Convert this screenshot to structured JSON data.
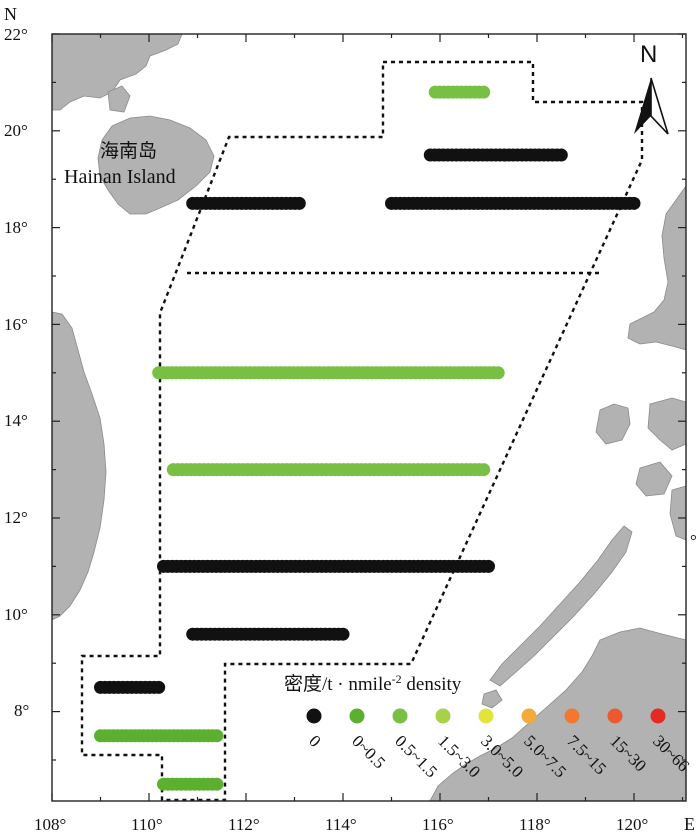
{
  "axes": {
    "north_letter": "N",
    "east_letter": "E",
    "lat_ticks": [
      "22°",
      "20°",
      "18°",
      "16°",
      "14°",
      "12°",
      "10°",
      "8°"
    ],
    "lon_ticks": [
      "108°",
      "110°",
      "112°",
      "114°",
      "116°",
      "118°",
      "120°"
    ],
    "right_edge_mark": "°"
  },
  "places": {
    "hainan_cn": "海南岛",
    "hainan_en": "Hainan Island"
  },
  "north_arrow_label": "N",
  "legend": {
    "title_prefix": "密度/t · nmile",
    "title_superscript": "-2",
    "title_suffix": " density",
    "classes": [
      {
        "label": "0",
        "color": "#111111"
      },
      {
        "label": "0~0.5",
        "color": "#5cb030"
      },
      {
        "label": "0.5~1.5",
        "color": "#78c044"
      },
      {
        "label": "1.5~3.0",
        "color": "#a8d048"
      },
      {
        "label": "3.0~5.0",
        "color": "#e2e43c"
      },
      {
        "label": "5.0~7.5",
        "color": "#f2aa3c"
      },
      {
        "label": "7.5~15",
        "color": "#f07830"
      },
      {
        "label": "15~30",
        "color": "#ea5a2e"
      },
      {
        "label": "30~66",
        "color": "#e42a22"
      }
    ]
  },
  "colors": {
    "land": "#b2b2b2",
    "sea": "#ffffff",
    "frame": "#222222"
  },
  "survey_tracks": [
    {
      "lat": 20.8,
      "lon_start": 115.9,
      "lon_end": 116.9,
      "density_class": "0.5~1.5"
    },
    {
      "lat": 19.5,
      "lon_start": 115.8,
      "lon_end": 118.5,
      "density_class": "0"
    },
    {
      "lat": 18.5,
      "lon_start": 110.9,
      "lon_end": 113.1,
      "density_class": "0"
    },
    {
      "lat": 18.5,
      "lon_start": 115.0,
      "lon_end": 120.0,
      "density_class": "0"
    },
    {
      "lat": 15.0,
      "lon_start": 110.2,
      "lon_end": 117.2,
      "density_class": "0.5~1.5"
    },
    {
      "lat": 13.0,
      "lon_start": 110.5,
      "lon_end": 116.9,
      "density_class": "0.5~1.5"
    },
    {
      "lat": 11.0,
      "lon_start": 110.3,
      "lon_end": 117.0,
      "density_class": "0"
    },
    {
      "lat": 9.6,
      "lon_start": 110.9,
      "lon_end": 114.0,
      "density_class": "0"
    },
    {
      "lat": 8.5,
      "lon_start": 109.0,
      "lon_end": 110.2,
      "density_class": "0"
    },
    {
      "lat": 7.5,
      "lon_start": 109.0,
      "lon_end": 111.4,
      "density_class": "0~0.5"
    },
    {
      "lat": 6.5,
      "lon_start": 110.3,
      "lon_end": 111.4,
      "density_class": "0~0.5"
    }
  ]
}
